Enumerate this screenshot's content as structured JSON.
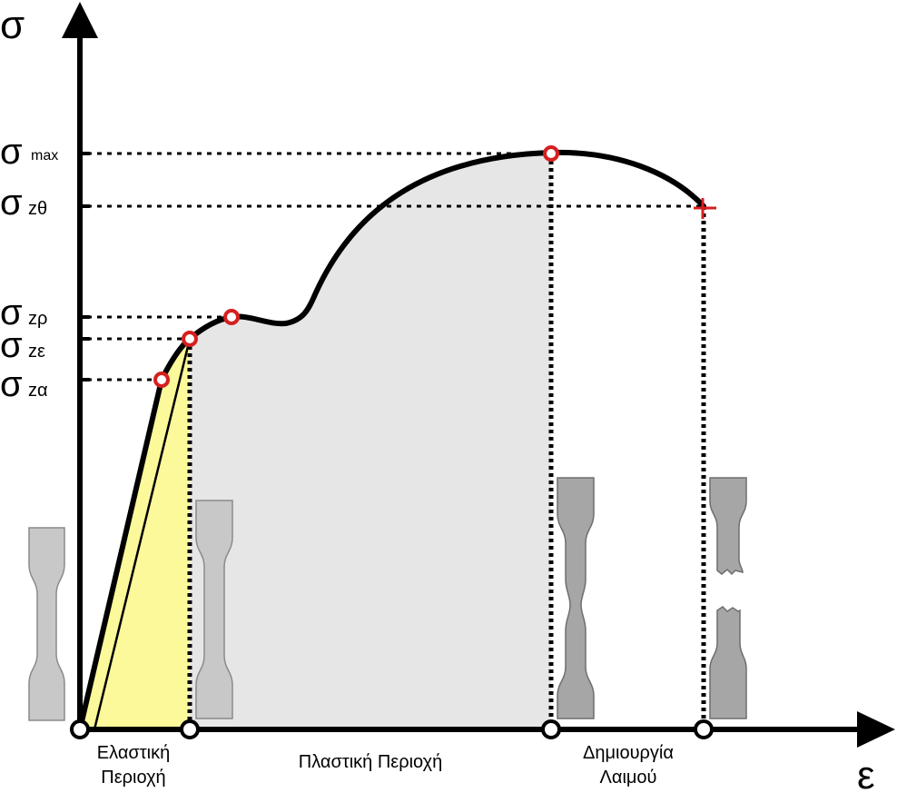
{
  "axes": {
    "y_symbol": "σ",
    "x_symbol": "ε"
  },
  "stress_levels": [
    {
      "symbol": "σ",
      "subscript": "max"
    },
    {
      "symbol": "σ",
      "subscript": "zθ"
    },
    {
      "symbol": "σ",
      "subscript": "zρ"
    },
    {
      "symbol": "σ",
      "subscript": "zε"
    },
    {
      "symbol": "σ",
      "subscript": "zα"
    }
  ],
  "regions": {
    "elastic": {
      "line1": "Ελαστική",
      "line2": "Περιοχή"
    },
    "plastic": {
      "line1": "Πλαστική Περιοχή"
    },
    "necking": {
      "line1": "Δημιουργία",
      "line2": "Λαιμού"
    }
  },
  "colors": {
    "elastic_fill": "#fcf99b",
    "plastic_fill": "#e6e6e6",
    "marker_red": "#d61f1f",
    "specimen_light": "#c8c8c8",
    "specimen_dark": "#a6a6a6",
    "line": "#000000"
  }
}
